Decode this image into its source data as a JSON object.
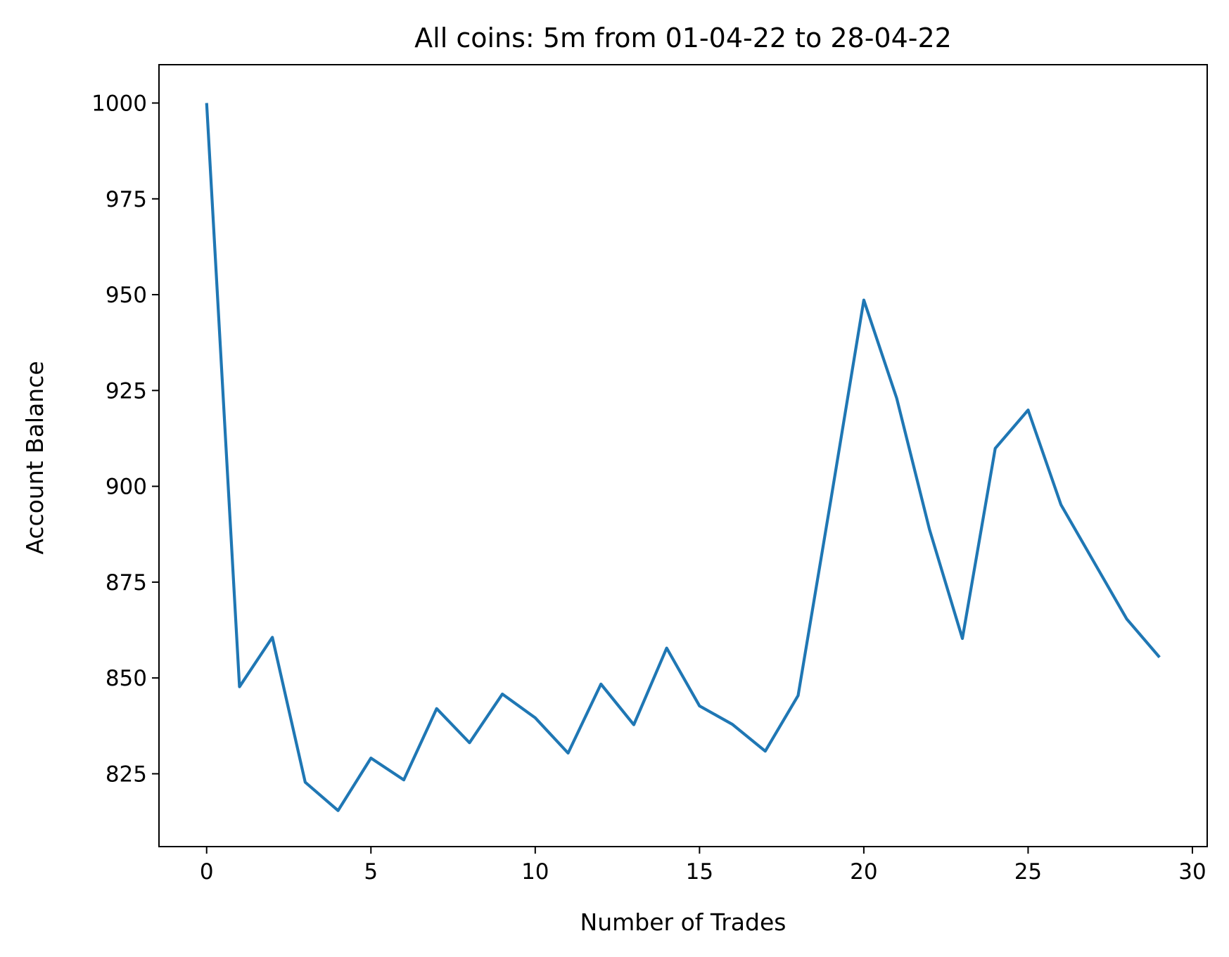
{
  "chart_data": {
    "type": "line",
    "title": "All coins: 5m from 01-04-22 to 28-04-22",
    "xlabel": "Number of Trades",
    "ylabel": "Account Balance",
    "xlim": [
      -1.45,
      30.45
    ],
    "ylim": [
      806,
      1010
    ],
    "xticks": [
      0,
      5,
      10,
      15,
      20,
      25,
      30
    ],
    "yticks": [
      825,
      850,
      875,
      900,
      925,
      950,
      975,
      1000
    ],
    "grid": false,
    "legend": "none",
    "series": [
      {
        "color": "#1f77b4",
        "x": [
          0,
          1,
          2,
          3,
          4,
          5,
          6,
          7,
          8,
          9,
          10,
          11,
          12,
          13,
          14,
          15,
          16,
          17,
          18,
          19,
          20,
          21,
          22,
          23,
          24,
          25,
          26,
          27,
          28,
          29
        ],
        "y": [
          1000,
          847.7,
          860.6,
          822.8,
          815.4,
          829.1,
          823.4,
          842,
          833.1,
          845.8,
          839.6,
          830.4,
          848.4,
          837.8,
          857.8,
          842.7,
          837.9,
          830.9,
          845.4,
          896.6,
          948.6,
          923,
          888.7,
          860.3,
          909.9,
          919.9,
          895.2,
          880.3,
          865.4,
          855.4
        ]
      }
    ]
  }
}
